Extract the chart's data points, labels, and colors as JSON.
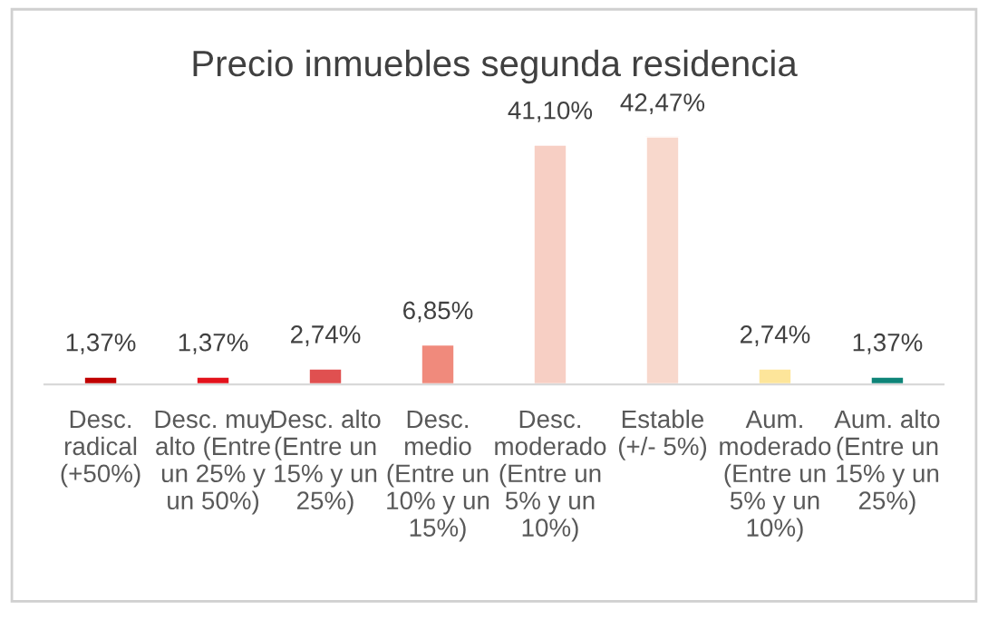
{
  "chart_data": {
    "type": "bar",
    "title": "Precio inmuebles segunda residencia",
    "categories": [
      "Desc.\nradical\n(+50%)",
      "Desc. muy\nalto (Entre\nun 25% y\nun 50%)",
      "Desc. alto\n(Entre un\n15% y un\n25%)",
      "Desc.\nmedio\n(Entre un\n10% y un\n15%)",
      "Desc.\nmoderado\n(Entre un\n5% y un\n10%)",
      "Estable\n(+/- 5%)",
      "Aum.\nmoderado\n(Entre un\n5% y un\n10%)",
      "Aum. alto\n(Entre un\n15% y un\n25%)"
    ],
    "values": [
      1.37,
      1.37,
      2.74,
      6.85,
      41.1,
      42.47,
      2.74,
      1.37
    ],
    "value_labels": [
      "1,37%",
      "1,37%",
      "2,74%",
      "6,85%",
      "41,10%",
      "42,47%",
      "2,74%",
      "1,37%"
    ],
    "colors": [
      "#c00000",
      "#e3121b",
      "#e05050",
      "#f08a7c",
      "#f7cfc4",
      "#f8d8cc",
      "#fde59a",
      "#0e8478"
    ]
  }
}
